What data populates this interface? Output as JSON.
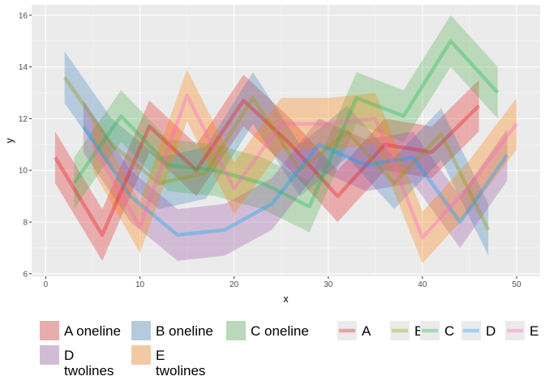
{
  "chart_data": {
    "type": "line",
    "xlabel": "x",
    "ylabel": "y",
    "xlim": [
      -1.5,
      52.5
    ],
    "ylim": [
      5.9,
      16.4
    ],
    "x_ticks": [
      0,
      10,
      20,
      30,
      40,
      50
    ],
    "y_ticks": [
      6,
      8,
      10,
      12,
      14,
      16
    ],
    "grid": true,
    "legend_position": "bottom",
    "ribbons": [
      {
        "name": "A oneline",
        "label_lines": [
          "A oneline"
        ],
        "color": "#e41a1c",
        "points": [
          [
            1,
            10.5,
            9.5,
            11.5
          ],
          [
            6,
            7.5,
            6.5,
            8.5
          ],
          [
            11,
            11.7,
            10.7,
            12.7
          ],
          [
            16,
            10,
            9,
            11
          ],
          [
            21,
            12.7,
            11.7,
            13.7
          ],
          [
            26,
            11,
            10,
            12
          ],
          [
            31,
            9,
            8,
            10
          ],
          [
            36,
            11,
            10,
            12
          ],
          [
            41,
            10.7,
            9.7,
            11.7
          ],
          [
            46,
            12.5,
            11.5,
            13.5
          ]
        ]
      },
      {
        "name": "B oneline",
        "label_lines": [
          "B oneline"
        ],
        "color": "#377eb8",
        "points": [
          [
            2,
            13.6,
            12.6,
            14.6
          ],
          [
            7,
            11,
            10,
            12
          ],
          [
            12,
            9.5,
            8.5,
            10.5
          ],
          [
            17,
            9.9,
            8.9,
            10.9
          ],
          [
            22,
            12.8,
            11.8,
            13.8
          ],
          [
            27,
            10,
            9,
            11
          ],
          [
            32,
            11.5,
            10.5,
            12.5
          ],
          [
            37,
            9.5,
            8.5,
            10.5
          ],
          [
            42,
            11.4,
            10.4,
            12.4
          ],
          [
            47,
            7.7,
            6.7,
            8.7
          ]
        ]
      },
      {
        "name": "C oneline",
        "label_lines": [
          "C oneline"
        ],
        "color": "#4daf4a",
        "points": [
          [
            3,
            9.5,
            8.5,
            10.5
          ],
          [
            8,
            12.1,
            11.1,
            13.1
          ],
          [
            13,
            10.2,
            9.2,
            11.2
          ],
          [
            18,
            10,
            9,
            11
          ],
          [
            23,
            9.5,
            8.5,
            10.5
          ],
          [
            28,
            8.6,
            7.6,
            9.6
          ],
          [
            33,
            12.8,
            11.8,
            13.8
          ],
          [
            38,
            12.1,
            11.1,
            13.1
          ],
          [
            43,
            15,
            14,
            16
          ],
          [
            48,
            13,
            12,
            14
          ]
        ]
      },
      {
        "name": "D twolines",
        "label_lines": [
          "D",
          "twolines"
        ],
        "color": "#984ea3",
        "points": [
          [
            4,
            11.7,
            10.7,
            12.7
          ],
          [
            9,
            9,
            8,
            10
          ],
          [
            14,
            7.5,
            6.5,
            8.5
          ],
          [
            19,
            7.7,
            6.7,
            8.7
          ],
          [
            24,
            8.7,
            7.7,
            9.7
          ],
          [
            29,
            11,
            10,
            12
          ],
          [
            34,
            10.2,
            9.2,
            11.2
          ],
          [
            39,
            10.5,
            9.5,
            11.5
          ],
          [
            44,
            8,
            7,
            9
          ],
          [
            49,
            10.6,
            9.6,
            11.6
          ]
        ]
      },
      {
        "name": "E twolines",
        "label_lines": [
          "E",
          "twolines"
        ],
        "color": "#ff7f00",
        "points": [
          [
            5,
            11,
            10,
            12
          ],
          [
            10,
            7.8,
            6.8,
            8.8
          ],
          [
            15,
            12.9,
            11.9,
            13.9
          ],
          [
            20,
            9.3,
            8.3,
            10.3
          ],
          [
            25,
            11.8,
            10.8,
            12.8
          ],
          [
            30,
            11.8,
            10.8,
            12.8
          ],
          [
            35,
            12,
            11,
            13
          ],
          [
            40,
            7.4,
            6.4,
            8.4
          ],
          [
            45,
            9.4,
            8.4,
            10.4
          ],
          [
            50,
            11.8,
            10.8,
            12.8
          ]
        ]
      }
    ],
    "series": [
      {
        "name": "A",
        "color": "#e41a1c",
        "points": [
          [
            1,
            10.5
          ],
          [
            6,
            7.5
          ],
          [
            11,
            11.7
          ],
          [
            16,
            10
          ],
          [
            21,
            12.7
          ],
          [
            26,
            11
          ],
          [
            31,
            9
          ],
          [
            36,
            11
          ],
          [
            41,
            10.7
          ],
          [
            46,
            12.5
          ]
        ]
      },
      {
        "name": "B",
        "color": "#999900",
        "points": [
          [
            2,
            13.6
          ],
          [
            7,
            11
          ],
          [
            12,
            9.5
          ],
          [
            17,
            9.9
          ],
          [
            22,
            12.8
          ],
          [
            27,
            10
          ],
          [
            32,
            11.5
          ],
          [
            37,
            9.5
          ],
          [
            42,
            11.4
          ],
          [
            47,
            7.7
          ]
        ]
      },
      {
        "name": "C",
        "color": "#1db954",
        "points": [
          [
            3,
            9.5
          ],
          [
            8,
            12.1
          ],
          [
            13,
            10.2
          ],
          [
            18,
            10
          ],
          [
            23,
            9.5
          ],
          [
            28,
            8.6
          ],
          [
            33,
            12.8
          ],
          [
            38,
            12.1
          ],
          [
            43,
            15
          ],
          [
            48,
            13
          ]
        ]
      },
      {
        "name": "D",
        "color": "#00a9ff",
        "points": [
          [
            4,
            11.7
          ],
          [
            9,
            9
          ],
          [
            14,
            7.5
          ],
          [
            19,
            7.7
          ],
          [
            24,
            8.7
          ],
          [
            29,
            11
          ],
          [
            34,
            10.2
          ],
          [
            39,
            10.5
          ],
          [
            44,
            8
          ],
          [
            49,
            10.6
          ]
        ]
      },
      {
        "name": "E",
        "color": "#ff61cc",
        "points": [
          [
            5,
            11
          ],
          [
            10,
            7.8
          ],
          [
            15,
            12.9
          ],
          [
            20,
            9.3
          ],
          [
            25,
            11.8
          ],
          [
            30,
            11.8
          ],
          [
            35,
            12
          ],
          [
            40,
            7.4
          ],
          [
            45,
            9.4
          ],
          [
            50,
            11.8
          ]
        ]
      }
    ]
  }
}
